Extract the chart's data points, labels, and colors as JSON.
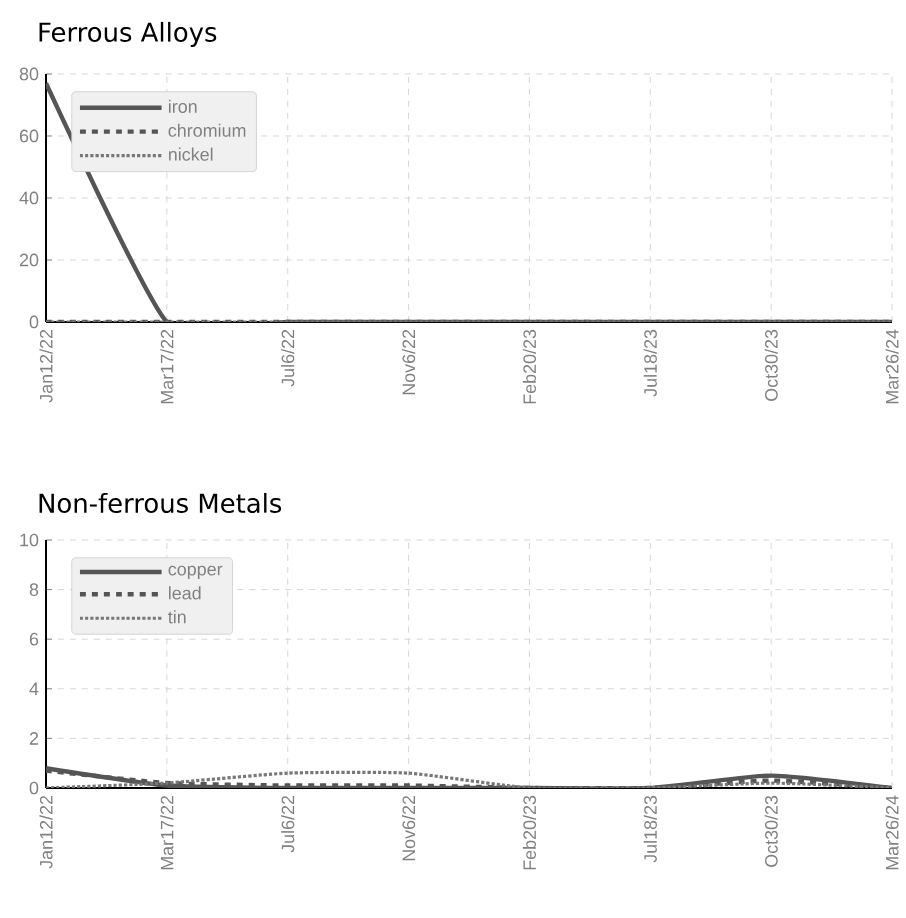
{
  "chart_data": [
    {
      "type": "line",
      "title": "Ferrous Alloys",
      "categories": [
        "Jan12/22",
        "Mar17/22",
        "Jul6/22",
        "Nov6/22",
        "Feb20/23",
        "Jul18/23",
        "Oct30/23",
        "Mar26/24"
      ],
      "ylim": [
        0,
        80
      ],
      "yticks": [
        0,
        20,
        40,
        60,
        80
      ],
      "grid": true,
      "legend": "top left",
      "series": [
        {
          "name": "iron",
          "color": "#555555",
          "line_style": "solid",
          "values": [
            77,
            0,
            0,
            0,
            0,
            0,
            0,
            0
          ]
        },
        {
          "name": "chromium",
          "color": "#555555",
          "line_style": "dashed",
          "values": [
            0,
            0,
            0,
            0,
            0,
            0,
            0,
            0
          ]
        },
        {
          "name": "nickel",
          "color": "#777777",
          "line_style": "dotted",
          "values": [
            0,
            0,
            0,
            0,
            0,
            0,
            0,
            0
          ]
        }
      ]
    },
    {
      "type": "line",
      "title": "Non-ferrous Metals",
      "categories": [
        "Jan12/22",
        "Mar17/22",
        "Jul6/22",
        "Nov6/22",
        "Feb20/23",
        "Jul18/23",
        "Oct30/23",
        "Mar26/24"
      ],
      "ylim": [
        0,
        10
      ],
      "yticks": [
        0,
        2,
        4,
        6,
        8,
        10
      ],
      "grid": true,
      "legend": "top left",
      "series": [
        {
          "name": "copper",
          "color": "#555555",
          "line_style": "solid",
          "values": [
            0.8,
            0.1,
            0,
            0,
            0,
            0,
            0.5,
            0
          ]
        },
        {
          "name": "lead",
          "color": "#555555",
          "line_style": "dashed",
          "values": [
            0.7,
            0.2,
            0.1,
            0.1,
            0,
            0,
            0.3,
            0
          ]
        },
        {
          "name": "tin",
          "color": "#777777",
          "line_style": "dotted",
          "values": [
            0,
            0.2,
            0.6,
            0.6,
            0,
            0,
            0.2,
            0
          ]
        }
      ]
    }
  ]
}
